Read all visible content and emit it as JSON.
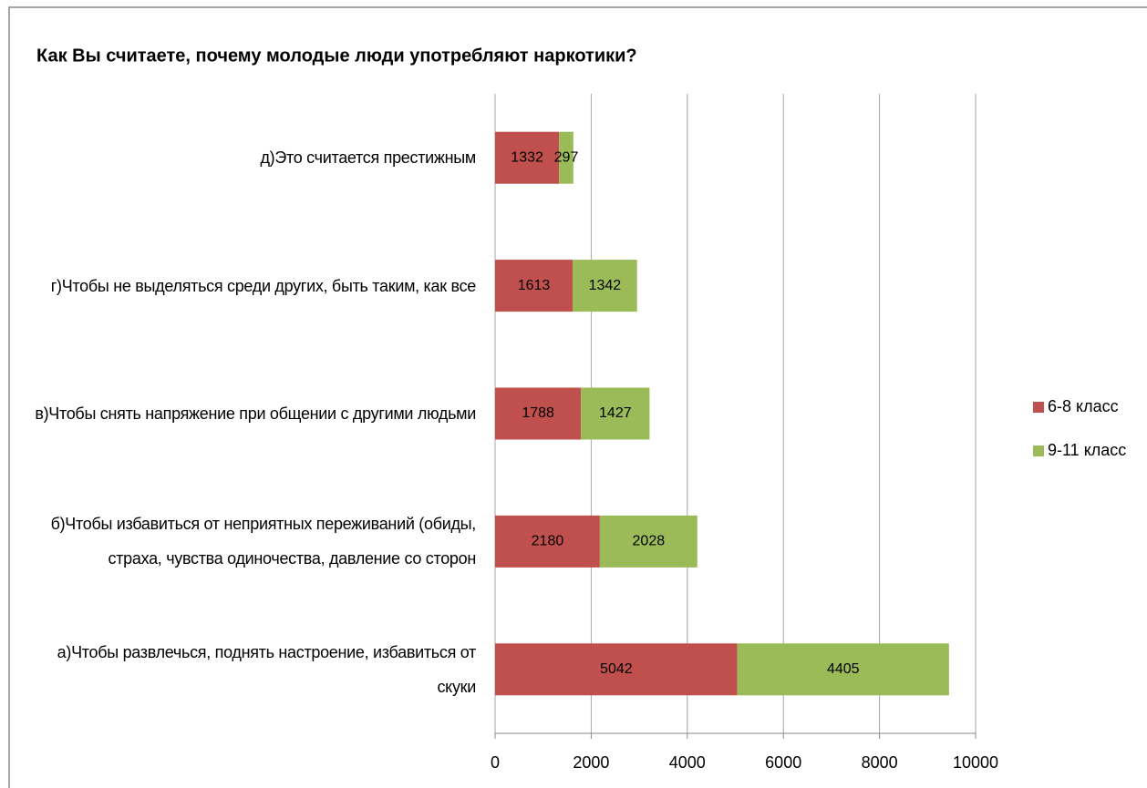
{
  "chart_data": {
    "type": "stacked_barh",
    "title": "Как Вы считаете, почему молодые люди употребляют наркотики?",
    "categories": [
      "д)Это считается престижным",
      "г)Чтобы не выделяться среди других, быть таким, как все",
      "в)Чтобы снять напряжение при общении с другими людьми",
      "б)Чтобы избавиться от неприятных переживаний (обиды, страха, чувства одиночества, давление со сторон",
      "а)Чтобы развлечься, поднять настроение, избавиться от скуки"
    ],
    "series": [
      {
        "name": "6-8 класс",
        "color": "#c0504d",
        "values": [
          1332,
          1613,
          1788,
          2180,
          5042
        ]
      },
      {
        "name": "9-11 класс",
        "color": "#9bbb59",
        "values": [
          297,
          1342,
          1427,
          2028,
          4405
        ]
      }
    ],
    "xlim": [
      0,
      10000
    ],
    "xticks": [
      0,
      2000,
      4000,
      6000,
      8000,
      10000
    ],
    "grid": true,
    "legend": "right"
  }
}
